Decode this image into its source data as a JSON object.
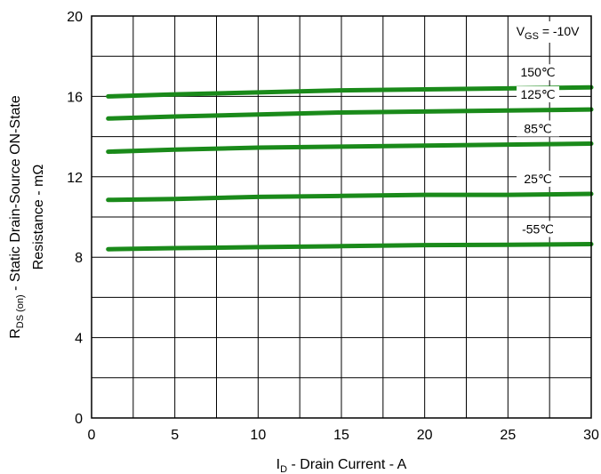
{
  "chart_data": {
    "type": "line",
    "xlabel": {
      "main": "I",
      "sub": "D",
      "rest": " - Drain Current - A"
    },
    "ylabel": {
      "line1_main": "R",
      "line1_sub": "DS (on)",
      "line1_rest": " - Static Drain-Source ON-State",
      "line2": "Resistance - mΩ"
    },
    "xlim": [
      0,
      30
    ],
    "ylim": [
      0,
      20
    ],
    "x_ticks": [
      0,
      5,
      10,
      15,
      20,
      25,
      30
    ],
    "y_ticks": [
      0,
      4,
      8,
      12,
      16,
      20
    ],
    "x_grid": [
      0,
      2.5,
      5,
      7.5,
      10,
      12.5,
      15,
      17.5,
      20,
      22.5,
      25,
      27.5,
      30
    ],
    "y_grid": [
      0,
      2,
      4,
      6,
      8,
      10,
      12,
      14,
      16,
      18,
      20
    ],
    "grid": true,
    "condition": {
      "main": "V",
      "sub": "GS",
      "rest": " = -10V"
    },
    "line_color": "#1a8a1a",
    "series": [
      {
        "name": "150℃",
        "x": [
          1,
          5,
          10,
          15,
          20,
          25,
          30
        ],
        "values": [
          16.0,
          16.1,
          16.2,
          16.3,
          16.35,
          16.4,
          16.45
        ]
      },
      {
        "name": "125℃",
        "x": [
          1,
          5,
          10,
          15,
          20,
          25,
          30
        ],
        "values": [
          14.9,
          15.0,
          15.1,
          15.2,
          15.25,
          15.3,
          15.35
        ]
      },
      {
        "name": "85℃",
        "x": [
          1,
          5,
          10,
          15,
          20,
          25,
          30
        ],
        "values": [
          13.25,
          13.35,
          13.45,
          13.5,
          13.55,
          13.6,
          13.65
        ]
      },
      {
        "name": "25℃",
        "x": [
          1,
          5,
          10,
          15,
          20,
          25,
          30
        ],
        "values": [
          10.85,
          10.9,
          11.0,
          11.05,
          11.1,
          11.1,
          11.15
        ]
      },
      {
        "name": "-55℃",
        "x": [
          1,
          5,
          10,
          15,
          20,
          25,
          30
        ],
        "values": [
          8.4,
          8.45,
          8.5,
          8.55,
          8.6,
          8.62,
          8.65
        ]
      }
    ]
  }
}
